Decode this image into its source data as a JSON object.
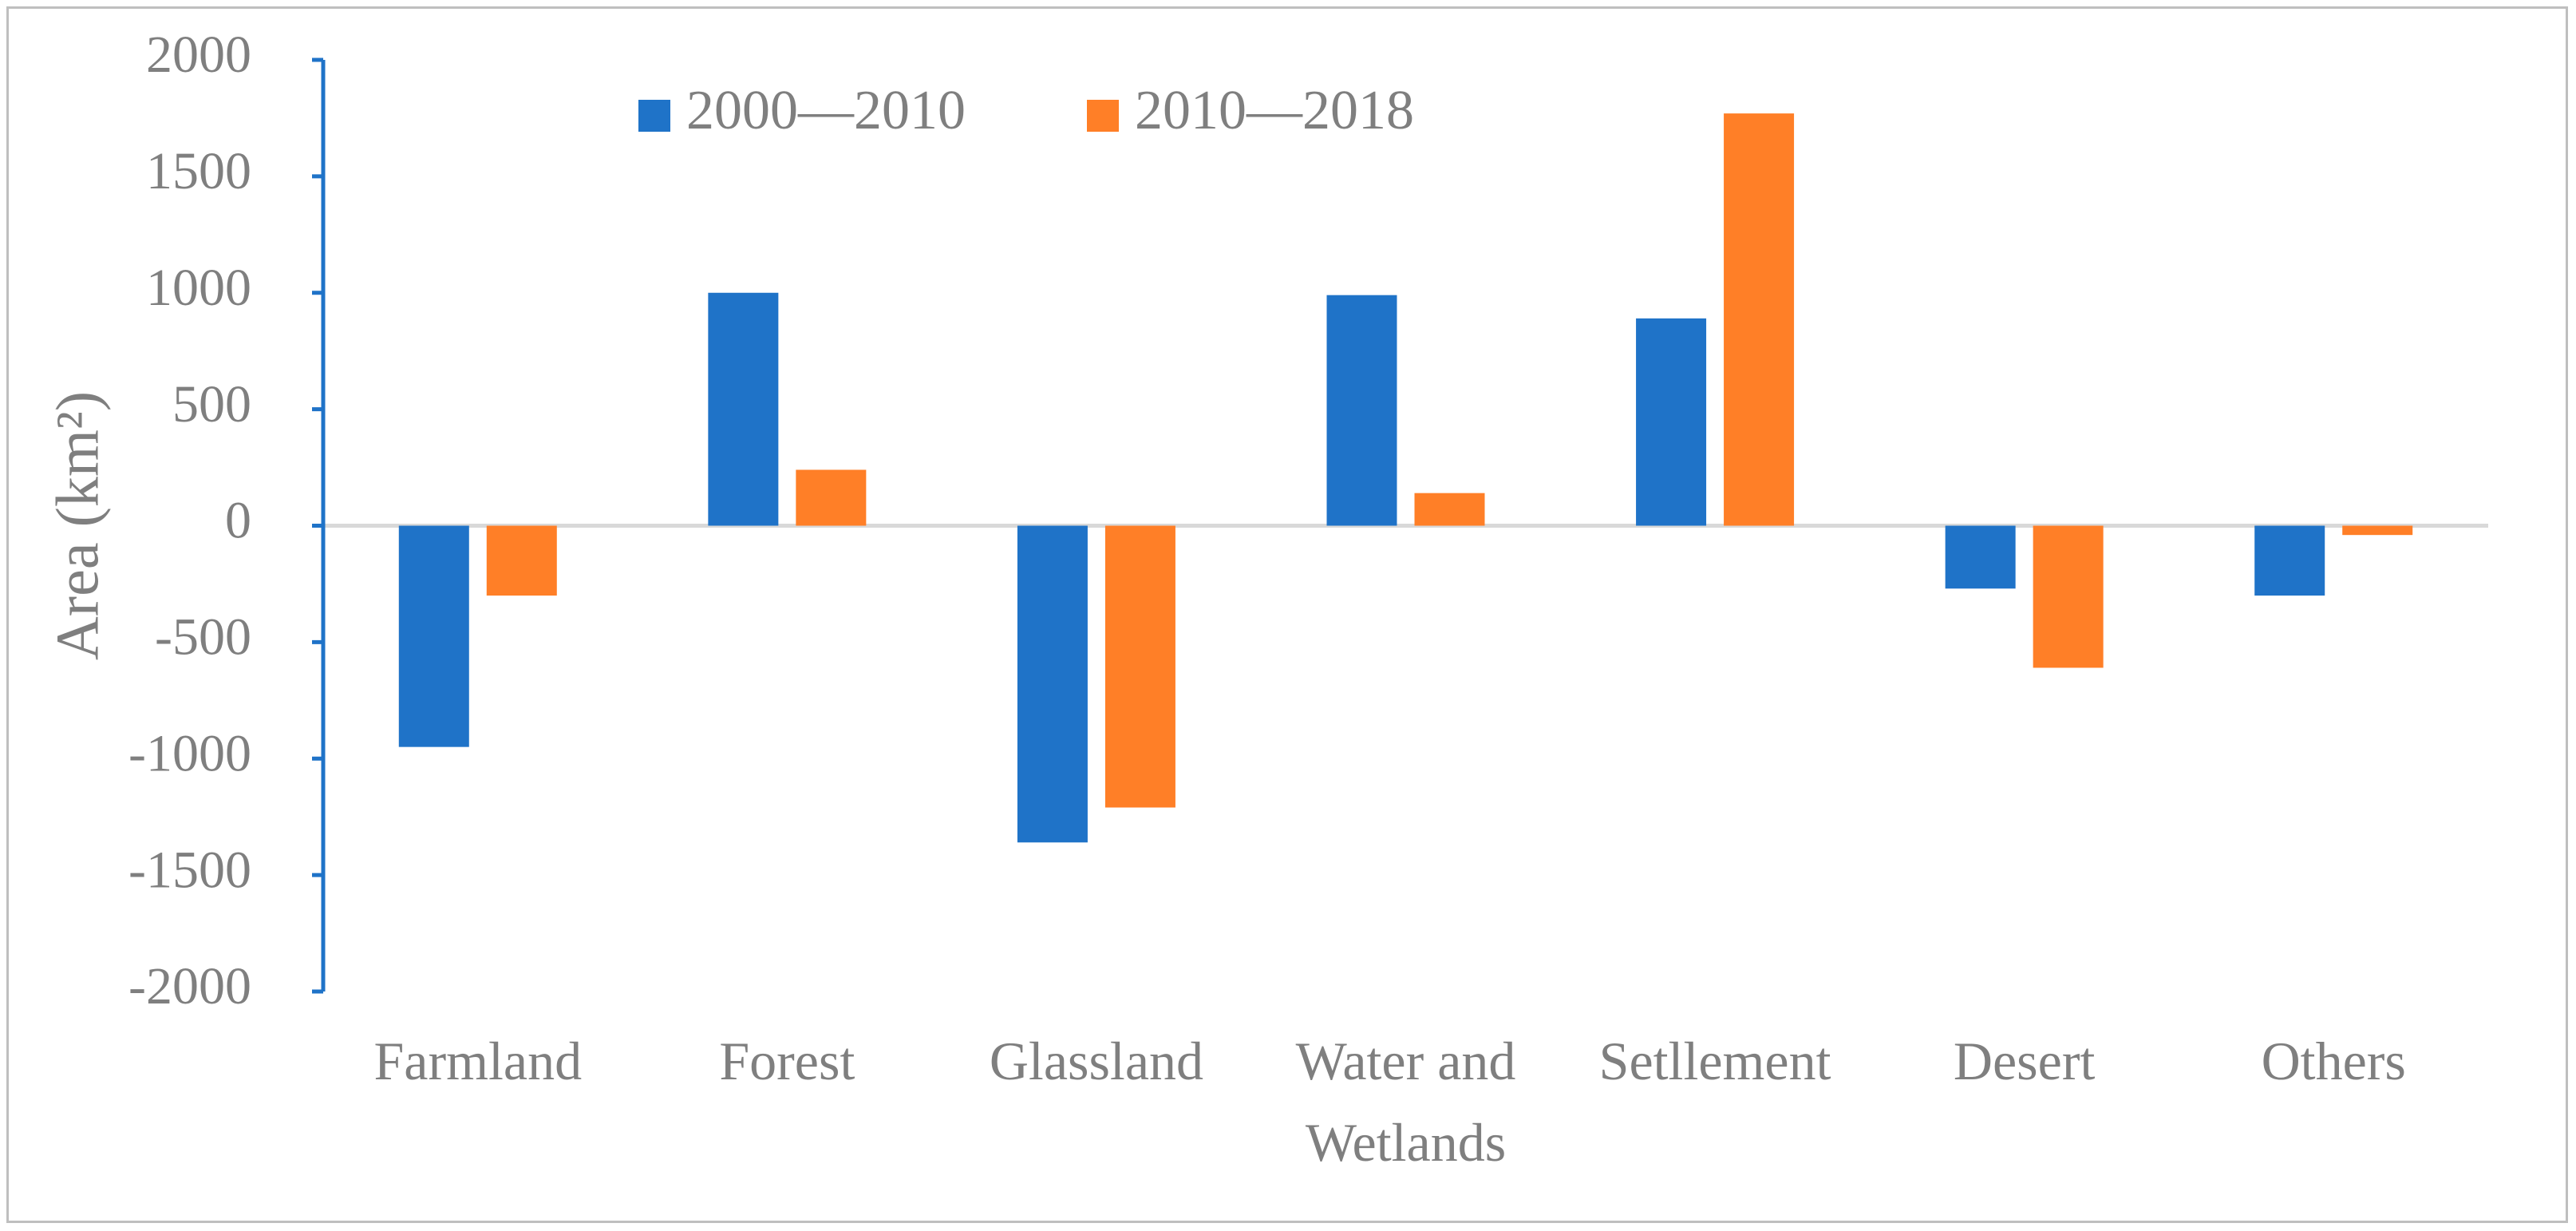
{
  "chart_data": {
    "type": "bar",
    "categories": [
      [
        "Farmland"
      ],
      [
        "Forest"
      ],
      [
        "Glassland"
      ],
      [
        "Water and",
        "Wetlands"
      ],
      [
        "Setllement"
      ],
      [
        "Desert"
      ],
      [
        "Others"
      ]
    ],
    "series": [
      {
        "name": "2000—2010",
        "color": "#1F73C8",
        "values": [
          -950,
          1000,
          -1360,
          990,
          890,
          -270,
          -300
        ]
      },
      {
        "name": "2010—2018",
        "color": "#FF7F27",
        "values": [
          -300,
          240,
          -1210,
          140,
          1770,
          -610,
          -40
        ]
      }
    ],
    "ylabel": "Area (km²)",
    "xlabel": "",
    "ylim": [
      -2000,
      2000
    ],
    "yticks": [
      2000,
      1500,
      1000,
      500,
      0,
      -500,
      -1000,
      -1500,
      -2000
    ],
    "axis_color": "#1F73C8",
    "zero_line_color": "#d9d9d9",
    "text_color": "#7f7f7f",
    "grid": false,
    "legend_position": "top"
  }
}
